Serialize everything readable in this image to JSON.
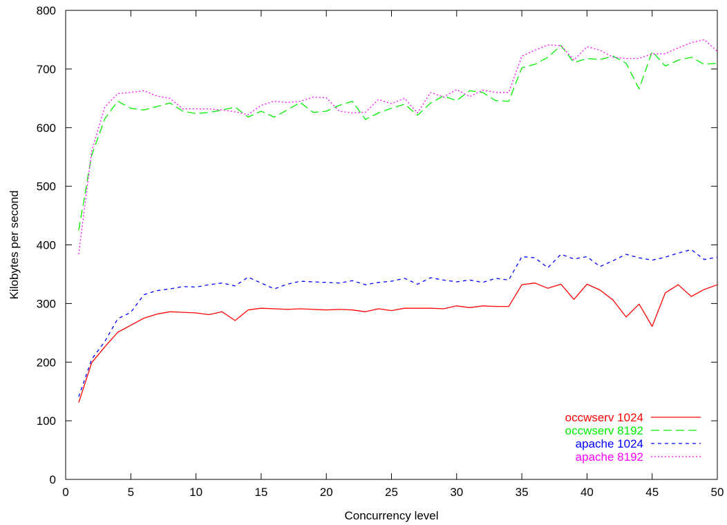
{
  "chart_data": {
    "type": "line",
    "title": "",
    "xlabel": "Concurrency level",
    "ylabel": "Kilobytes per second",
    "xlim": [
      0,
      50
    ],
    "ylim": [
      0,
      800
    ],
    "xticks": [
      0,
      5,
      10,
      15,
      20,
      25,
      30,
      35,
      40,
      45,
      50
    ],
    "yticks": [
      0,
      100,
      200,
      300,
      400,
      500,
      600,
      700,
      800
    ],
    "grid": false,
    "legend_position": "bottom-right",
    "x": [
      1,
      2,
      3,
      4,
      5,
      6,
      7,
      8,
      9,
      10,
      11,
      12,
      13,
      14,
      15,
      16,
      17,
      18,
      19,
      20,
      21,
      22,
      23,
      24,
      25,
      26,
      27,
      28,
      29,
      30,
      31,
      32,
      33,
      34,
      35,
      36,
      37,
      38,
      39,
      40,
      41,
      42,
      43,
      44,
      45,
      46,
      47,
      48,
      49,
      50
    ],
    "series": [
      {
        "name": "occwserv 1024",
        "color": "#ff0000",
        "dash": "solid",
        "values": [
          131,
          199,
          226,
          251,
          263,
          275,
          282,
          286,
          285,
          284,
          281,
          286,
          271,
          289,
          292,
          291,
          290,
          291,
          290,
          289,
          290,
          289,
          286,
          291,
          288,
          292,
          292,
          292,
          291,
          296,
          293,
          296,
          295,
          295,
          332,
          335,
          326,
          333,
          307,
          333,
          323,
          306,
          277,
          299,
          261,
          318,
          332,
          312,
          324,
          332
        ]
      },
      {
        "name": "occwserv 8192",
        "color": "#00ee00",
        "dash": "long",
        "values": [
          425,
          553,
          615,
          645,
          633,
          630,
          636,
          642,
          628,
          624,
          626,
          630,
          635,
          618,
          628,
          618,
          630,
          643,
          626,
          628,
          638,
          645,
          614,
          625,
          633,
          640,
          621,
          642,
          654,
          646,
          663,
          660,
          646,
          645,
          702,
          708,
          720,
          740,
          711,
          718,
          716,
          722,
          710,
          666,
          730,
          705,
          715,
          720,
          708,
          710
        ]
      },
      {
        "name": "apache 1024",
        "color": "#0000ff",
        "dash": "short",
        "values": [
          141,
          205,
          235,
          274,
          285,
          315,
          322,
          325,
          329,
          328,
          332,
          335,
          330,
          345,
          335,
          325,
          333,
          338,
          337,
          336,
          335,
          339,
          332,
          336,
          338,
          343,
          333,
          344,
          340,
          337,
          340,
          336,
          343,
          340,
          380,
          378,
          361,
          384,
          376,
          380,
          363,
          373,
          384,
          378,
          374,
          379,
          386,
          392,
          375,
          379
        ]
      },
      {
        "name": "apache 8192",
        "color": "#ff00ff",
        "dash": "dotted",
        "values": [
          384,
          560,
          635,
          658,
          660,
          663,
          654,
          650,
          632,
          632,
          632,
          630,
          627,
          622,
          638,
          645,
          643,
          645,
          652,
          651,
          628,
          625,
          626,
          648,
          641,
          650,
          625,
          660,
          652,
          665,
          653,
          664,
          660,
          660,
          722,
          732,
          741,
          740,
          715,
          738,
          732,
          720,
          718,
          718,
          726,
          726,
          736,
          745,
          750,
          730
        ]
      }
    ]
  }
}
